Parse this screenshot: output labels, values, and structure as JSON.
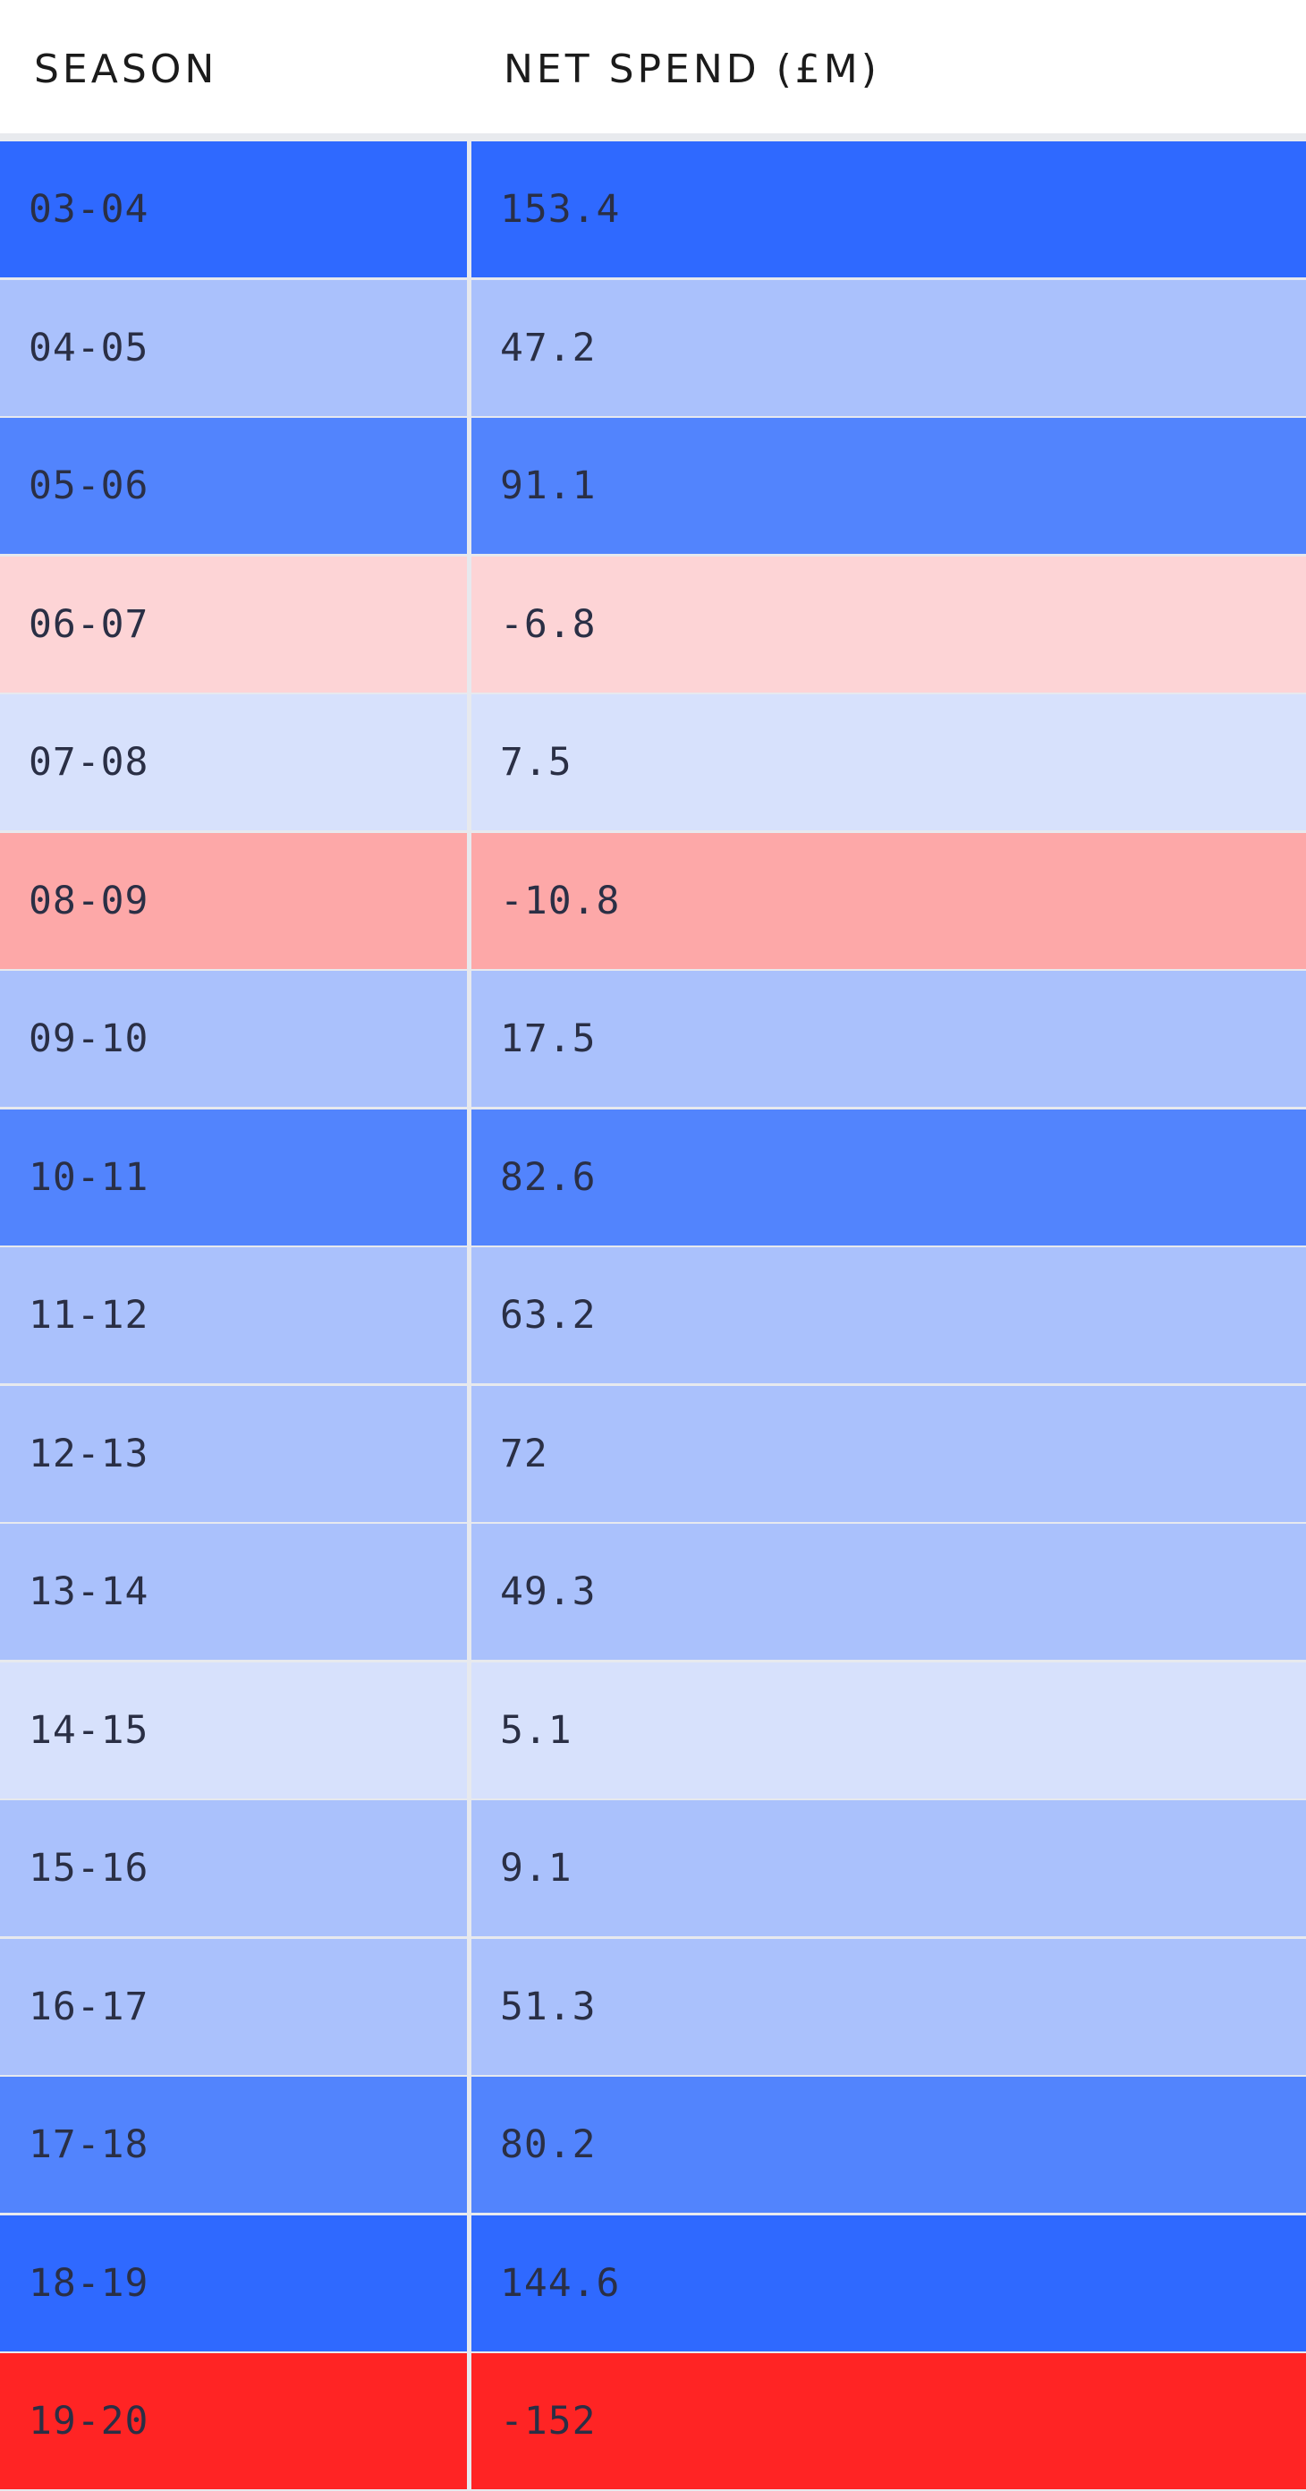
{
  "header": {
    "season_label": "SEASON",
    "spend_label": "NET SPEND (£M)"
  },
  "scale_colors": {
    "high_blue": "#2f69ff",
    "mid_blue": "#5284fd",
    "light_blue": "#aac1fc",
    "pale_blue": "#d7e1fc",
    "pale_red": "#fdd4d6",
    "light_red": "#fda8a8",
    "strong_red": "#ff2424"
  },
  "chart_data": {
    "type": "table",
    "columns": [
      "SEASON",
      "NET SPEND (£M)"
    ],
    "rows": [
      {
        "season": "03-04",
        "value": "153.4",
        "color": "#2f69ff"
      },
      {
        "season": "04-05",
        "value": "47.2",
        "color": "#aac1fc"
      },
      {
        "season": "05-06",
        "value": "91.1",
        "color": "#5284fd"
      },
      {
        "season": "06-07",
        "value": "-6.8",
        "color": "#fdd4d6"
      },
      {
        "season": "07-08",
        "value": "7.5",
        "color": "#d7e1fc"
      },
      {
        "season": "08-09",
        "value": "-10.8",
        "color": "#fda8a8"
      },
      {
        "season": "09-10",
        "value": "17.5",
        "color": "#aac1fc"
      },
      {
        "season": "10-11",
        "value": "82.6",
        "color": "#5284fd"
      },
      {
        "season": "11-12",
        "value": "63.2",
        "color": "#aac1fc"
      },
      {
        "season": "12-13",
        "value": "72",
        "color": "#aac1fc"
      },
      {
        "season": "13-14",
        "value": "49.3",
        "color": "#aac1fc"
      },
      {
        "season": "14-15",
        "value": "5.1",
        "color": "#d7e1fc"
      },
      {
        "season": "15-16",
        "value": "9.1",
        "color": "#aac1fc"
      },
      {
        "season": "16-17",
        "value": "51.3",
        "color": "#aac1fc"
      },
      {
        "season": "17-18",
        "value": "80.2",
        "color": "#5284fd"
      },
      {
        "season": "18-19",
        "value": "144.6",
        "color": "#2f69ff"
      },
      {
        "season": "19-20",
        "value": "-152",
        "color": "#ff2424"
      }
    ]
  }
}
